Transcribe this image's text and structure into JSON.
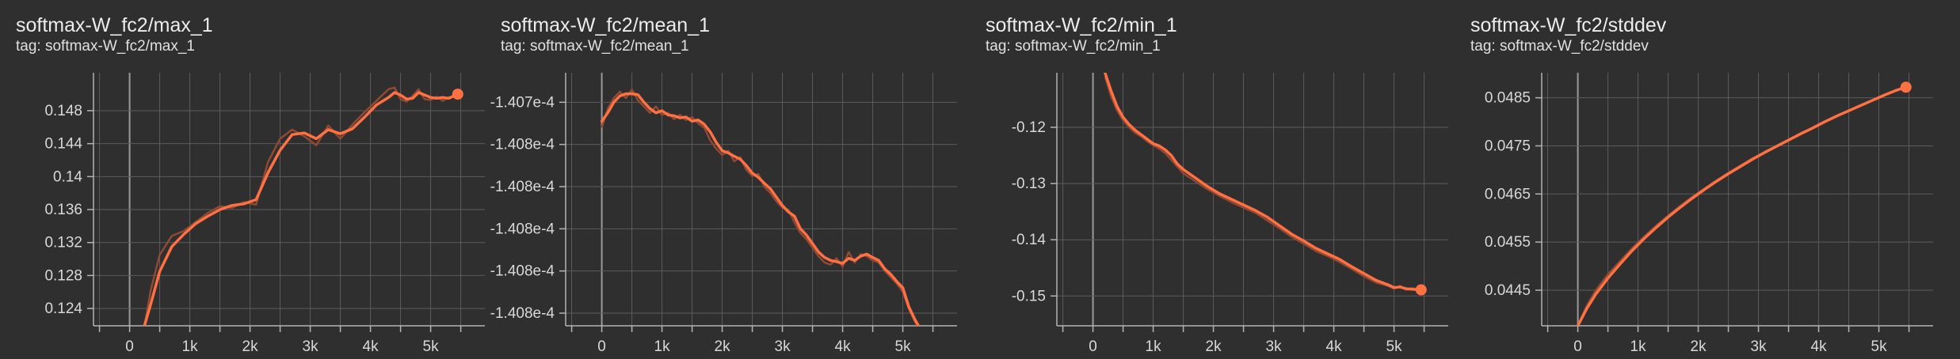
{
  "colors": {
    "line": "#ff7043",
    "raw": "#8f4a34",
    "grid": "#5c5c5c",
    "axis": "#b4b4b4",
    "background": "#2f2f2f"
  },
  "chart_data": [
    {
      "type": "line",
      "title": "softmax-W_fc2/max_1",
      "tag": "tag: softmax-W_fc2/max_1",
      "xlim": [
        -600,
        5900
      ],
      "ylim": [
        0.1219,
        0.1526
      ],
      "x_ticks": [
        0,
        1000,
        2000,
        3000,
        4000,
        5000
      ],
      "x_tick_labels": [
        "0",
        "1k",
        "2k",
        "3k",
        "4k",
        "5k"
      ],
      "y_ticks": [
        0.124,
        0.128,
        0.132,
        0.136,
        0.14,
        0.144,
        0.148
      ],
      "y_tick_labels": [
        "0.124",
        "0.128",
        "0.132",
        "0.136",
        "0.14",
        "0.144",
        "0.148"
      ],
      "grid": true,
      "x": [
        250,
        350,
        500,
        700,
        900,
        1100,
        1300,
        1500,
        1700,
        1900,
        2100,
        2300,
        2500,
        2700,
        2900,
        3100,
        3300,
        3500,
        3700,
        3900,
        4100,
        4300,
        4400,
        4500,
        4600,
        4700,
        4800,
        4900,
        5000,
        5100,
        5200,
        5300,
        5450
      ],
      "y": [
        0.122,
        0.1245,
        0.1285,
        0.1315,
        0.133,
        0.1343,
        0.1352,
        0.136,
        0.1365,
        0.1367,
        0.1372,
        0.1405,
        0.1432,
        0.1451,
        0.1453,
        0.1446,
        0.1457,
        0.1452,
        0.1458,
        0.1472,
        0.1487,
        0.1496,
        0.1502,
        0.1499,
        0.1494,
        0.1495,
        0.1502,
        0.1499,
        0.1496,
        0.1495,
        0.1496,
        0.1495,
        0.15
      ],
      "raw_y": [
        0.122,
        0.1262,
        0.1305,
        0.1328,
        0.1334,
        0.1345,
        0.1356,
        0.1364,
        0.1362,
        0.1369,
        0.1366,
        0.1418,
        0.1446,
        0.1457,
        0.1449,
        0.1438,
        0.1462,
        0.1446,
        0.1463,
        0.1478,
        0.1492,
        0.1506,
        0.1508,
        0.1494,
        0.1491,
        0.1498,
        0.1506,
        0.1494,
        0.1493,
        0.1497,
        0.1492,
        0.1496,
        0.15
      ]
    },
    {
      "type": "line",
      "title": "softmax-W_fc2/mean_1",
      "tag": "tag: softmax-W_fc2/mean_1",
      "xlim": [
        -600,
        5900
      ],
      "ylim": [
        0,
        6
      ],
      "x_ticks": [
        0,
        1000,
        2000,
        3000,
        4000,
        5000
      ],
      "x_tick_labels": [
        "0",
        "1k",
        "2k",
        "3k",
        "4k",
        "5k"
      ],
      "y_ticks": [
        0.3,
        1.3,
        2.3,
        3.3,
        4.3,
        5.3
      ],
      "y_tick_labels": [
        "-1.408e-4",
        "-1.408e-4",
        "-1.408e-4",
        "-1.408e-4",
        "-1.408e-4",
        "-1.407e-4"
      ],
      "grid": true,
      "x": [
        0,
        100,
        200,
        300,
        400,
        500,
        600,
        700,
        800,
        900,
        1000,
        1100,
        1200,
        1300,
        1400,
        1500,
        1600,
        1700,
        1800,
        1900,
        2000,
        2100,
        2200,
        2300,
        2400,
        2500,
        2600,
        2700,
        2800,
        2900,
        3000,
        3100,
        3200,
        3300,
        3400,
        3500,
        3600,
        3700,
        3800,
        3900,
        4000,
        4100,
        4200,
        4300,
        4400,
        4500,
        4600,
        4700,
        4800,
        4900,
        5000,
        5100,
        5200,
        5300
      ],
      "y": [
        4.85,
        5.05,
        5.3,
        5.45,
        5.5,
        5.5,
        5.48,
        5.3,
        5.15,
        5.05,
        5.1,
        5.0,
        4.98,
        4.93,
        4.95,
        4.85,
        4.88,
        4.78,
        4.6,
        4.35,
        4.15,
        4.1,
        4.02,
        3.95,
        3.8,
        3.62,
        3.52,
        3.38,
        3.25,
        3.05,
        2.85,
        2.7,
        2.6,
        2.3,
        2.15,
        1.95,
        1.75,
        1.62,
        1.55,
        1.52,
        1.48,
        1.6,
        1.55,
        1.65,
        1.7,
        1.62,
        1.55,
        1.35,
        1.22,
        1.05,
        0.9,
        0.45,
        0.15,
        -0.1
      ],
      "raw_y": [
        4.7,
        5.15,
        5.4,
        5.55,
        5.4,
        5.6,
        5.35,
        5.2,
        5.05,
        5.2,
        5.0,
        5.05,
        4.9,
        5.0,
        4.88,
        4.95,
        4.8,
        4.7,
        4.4,
        4.2,
        4.05,
        4.15,
        3.9,
        4.0,
        3.7,
        3.55,
        3.6,
        3.3,
        3.15,
        2.95,
        2.8,
        2.75,
        2.45,
        2.2,
        2.05,
        1.85,
        1.65,
        1.5,
        1.45,
        1.6,
        1.4,
        1.75,
        1.5,
        1.7,
        1.65,
        1.55,
        1.5,
        1.3,
        1.15,
        1.0,
        0.8,
        0.4,
        0.1,
        -0.15
      ]
    },
    {
      "type": "line",
      "title": "softmax-W_fc2/min_1",
      "tag": "tag: softmax-W_fc2/min_1",
      "xlim": [
        -600,
        5900
      ],
      "ylim": [
        -0.1553,
        -0.1103
      ],
      "x_ticks": [
        0,
        1000,
        2000,
        3000,
        4000,
        5000
      ],
      "x_tick_labels": [
        "0",
        "1k",
        "2k",
        "3k",
        "4k",
        "5k"
      ],
      "y_ticks": [
        -0.15,
        -0.14,
        -0.13,
        -0.12
      ],
      "y_tick_labels": [
        "-0.15",
        "-0.14",
        "-0.13",
        "-0.12"
      ],
      "grid": true,
      "x": [
        200,
        300,
        400,
        500,
        600,
        700,
        800,
        900,
        1000,
        1100,
        1200,
        1300,
        1400,
        1500,
        1700,
        1900,
        2100,
        2300,
        2500,
        2700,
        2900,
        3100,
        3300,
        3500,
        3700,
        3900,
        4100,
        4300,
        4500,
        4700,
        4900,
        5000,
        5100,
        5200,
        5300,
        5450
      ],
      "y": [
        -0.1103,
        -0.1135,
        -0.1163,
        -0.1182,
        -0.1195,
        -0.1205,
        -0.1213,
        -0.1221,
        -0.1229,
        -0.1233,
        -0.124,
        -0.125,
        -0.1265,
        -0.1275,
        -0.129,
        -0.1305,
        -0.1318,
        -0.1328,
        -0.1338,
        -0.1348,
        -0.136,
        -0.1375,
        -0.139,
        -0.1402,
        -0.1415,
        -0.1425,
        -0.1435,
        -0.1448,
        -0.146,
        -0.1472,
        -0.148,
        -0.1485,
        -0.1484,
        -0.1487,
        -0.1488,
        -0.1489
      ],
      "raw_y": [
        -0.111,
        -0.1145,
        -0.117,
        -0.1188,
        -0.12,
        -0.121,
        -0.1216,
        -0.1225,
        -0.1232,
        -0.1238,
        -0.1246,
        -0.1258,
        -0.127,
        -0.1282,
        -0.1296,
        -0.131,
        -0.1322,
        -0.1333,
        -0.1343,
        -0.1352,
        -0.1366,
        -0.138,
        -0.1395,
        -0.1407,
        -0.142,
        -0.1429,
        -0.144,
        -0.1452,
        -0.1465,
        -0.1476,
        -0.1482,
        -0.1487,
        -0.1482,
        -0.1489,
        -0.1486,
        -0.1489
      ]
    },
    {
      "type": "line",
      "title": "softmax-W_fc2/stddev",
      "tag": "tag: softmax-W_fc2/stddev",
      "xlim": [
        -600,
        5900
      ],
      "ylim": [
        0.04376,
        0.04902
      ],
      "x_ticks": [
        0,
        1000,
        2000,
        3000,
        4000,
        5000
      ],
      "x_tick_labels": [
        "0",
        "1k",
        "2k",
        "3k",
        "4k",
        "5k"
      ],
      "y_ticks": [
        0.0445,
        0.0455,
        0.0465,
        0.0475,
        0.0485
      ],
      "y_tick_labels": [
        "0.0445",
        "0.0455",
        "0.0465",
        "0.0475",
        "0.0485"
      ],
      "grid": true,
      "x": [
        0,
        150,
        300,
        500,
        700,
        900,
        1100,
        1300,
        1500,
        1700,
        1900,
        2100,
        2300,
        2500,
        2700,
        2900,
        3100,
        3300,
        3500,
        3700,
        3900,
        4100,
        4300,
        4500,
        4700,
        4900,
        5100,
        5300,
        5450
      ],
      "y": [
        0.04376,
        0.04412,
        0.04442,
        0.04475,
        0.04504,
        0.04532,
        0.04557,
        0.0458,
        0.04602,
        0.04622,
        0.04641,
        0.04659,
        0.04676,
        0.04692,
        0.04707,
        0.04722,
        0.04736,
        0.04749,
        0.04762,
        0.04775,
        0.04787,
        0.048,
        0.04812,
        0.04823,
        0.04834,
        0.04845,
        0.04856,
        0.04866,
        0.04872
      ],
      "raw_y": [
        0.04376,
        0.04418,
        0.0445,
        0.04483,
        0.0451,
        0.04537,
        0.04561,
        0.04584,
        0.04605,
        0.04625,
        0.04644,
        0.04661,
        0.04678,
        0.04694,
        0.04709,
        0.04724,
        0.04737,
        0.0475,
        0.04763,
        0.04776,
        0.04788,
        0.04801,
        0.04812,
        0.04823,
        0.04834,
        0.04845,
        0.04856,
        0.04866,
        0.04872
      ]
    }
  ]
}
